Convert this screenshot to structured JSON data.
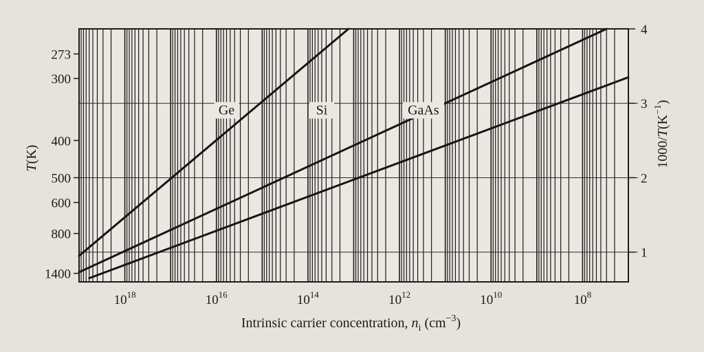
{
  "chart_data": {
    "type": "line",
    "title": "",
    "xlabel": {
      "prefix": "Intrinsic carrier concentration, ",
      "var": "n",
      "sub": "i",
      "unit_open": " (cm",
      "unit_sup": "−3",
      "unit_close": ")"
    },
    "x_scale": "log",
    "x_reversed": true,
    "xlim": [
      10000000.0,
      1e+19
    ],
    "x_ticks": [
      {
        "value": 1e+18,
        "base": "10",
        "exp": "18"
      },
      {
        "value": 1e+16,
        "base": "10",
        "exp": "16"
      },
      {
        "value": 100000000000000.0,
        "base": "10",
        "exp": "14"
      },
      {
        "value": 1000000000000.0,
        "base": "10",
        "exp": "12"
      },
      {
        "value": 10000000000.0,
        "base": "10",
        "exp": "10"
      },
      {
        "value": 100000000.0,
        "base": "10",
        "exp": "8"
      }
    ],
    "y_left_label": {
      "var": "T",
      "unit": "(K)"
    },
    "y_left_scale": "reciprocal",
    "y_left_ticks": [
      {
        "value": 273,
        "label": "273"
      },
      {
        "value": 300,
        "label": "300"
      },
      {
        "value": 400,
        "label": "400"
      },
      {
        "value": 500,
        "label": "500"
      },
      {
        "value": 600,
        "label": "600"
      },
      {
        "value": 800,
        "label": "800"
      },
      {
        "value": 1400,
        "label": "1400"
      }
    ],
    "y_right_label": {
      "prefix": "1000/",
      "var": "T",
      "unit_open": "(K",
      "unit_sup": "−1",
      "unit_close": ")"
    },
    "ylim": [
      0.6,
      4.0
    ],
    "y_right_ticks": [
      {
        "value": 1,
        "label": "1"
      },
      {
        "value": 2,
        "label": "2"
      },
      {
        "value": 3,
        "label": "3"
      },
      {
        "value": 4,
        "label": "4"
      }
    ],
    "horizontal_gridlines": [
      1,
      2,
      3
    ],
    "vertical_gridlines": "log minor grid",
    "series": [
      {
        "name": "Ge",
        "points": [
          {
            "x": 1e+19,
            "y": 0.95
          },
          {
            "x": 13000000000000.0,
            "y": 4.0
          }
        ]
      },
      {
        "name": "Si",
        "points": [
          {
            "x": 1e+19,
            "y": 0.73
          },
          {
            "x": 30000000.0,
            "y": 4.0
          }
        ]
      },
      {
        "name": "GaAs",
        "points": [
          {
            "x": 6e+18,
            "y": 0.65
          },
          {
            "x": 10000000.0,
            "y": 3.35
          }
        ]
      }
    ],
    "annotations": [
      {
        "text": "Ge",
        "x": 6000000000000000.0,
        "y": 2.85
      },
      {
        "text": "Si",
        "x": 50000000000000.0,
        "y": 2.85
      },
      {
        "text": "GaAs",
        "x": 300000000000.0,
        "y": 2.85
      }
    ]
  }
}
